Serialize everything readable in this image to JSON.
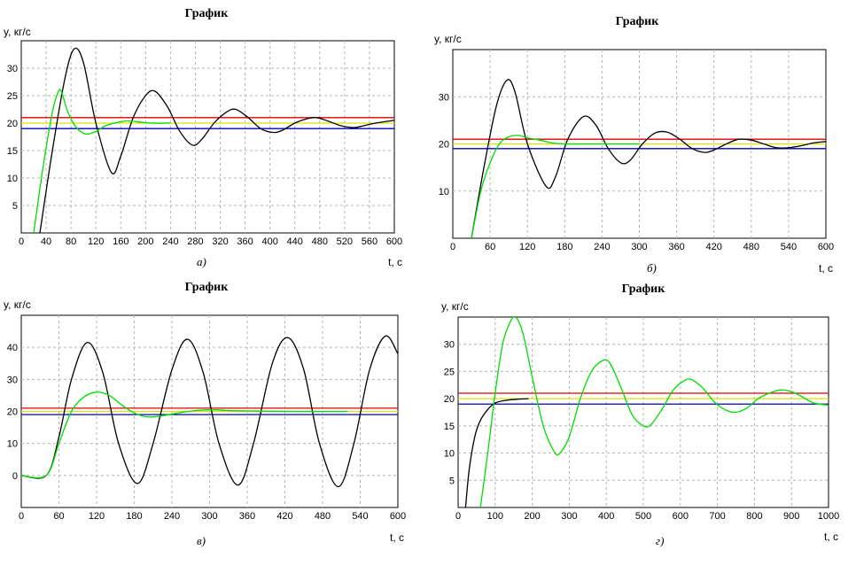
{
  "chart_data": [
    {
      "type": "line",
      "title": "График",
      "ylabel": "y, кг/с",
      "xlabel": "t, c",
      "caption": "а)",
      "xlim": [
        0,
        600
      ],
      "ylim": [
        0,
        35
      ],
      "xticks": [
        0,
        40,
        80,
        120,
        160,
        200,
        240,
        280,
        320,
        360,
        400,
        440,
        480,
        520,
        560,
        600
      ],
      "yticks": [
        5,
        10,
        15,
        20,
        25,
        30
      ],
      "grid": true,
      "hlines": [
        {
          "y": 21,
          "color": "#e00000"
        },
        {
          "y": 20,
          "color": "#e0e000"
        },
        {
          "y": 19,
          "color": "#0000c0"
        }
      ],
      "series": [
        {
          "color": "#000000",
          "x": [
            30,
            50,
            70,
            85,
            100,
            120,
            145,
            160,
            180,
            200,
            215,
            235,
            255,
            275,
            290,
            310,
            330,
            345,
            365,
            385,
            405,
            420,
            440,
            460,
            475,
            495,
            515,
            535,
            550,
            570,
            600
          ],
          "y": [
            0,
            15,
            28,
            33.5,
            31,
            20,
            11,
            14,
            21,
            25,
            25.8,
            23,
            18.5,
            16,
            17,
            20,
            22,
            22.5,
            21,
            19,
            18.3,
            18.7,
            20,
            20.8,
            21,
            20.3,
            19.5,
            19.2,
            19.5,
            20,
            20.5
          ]
        },
        {
          "color": "#00dd00",
          "x": [
            20,
            35,
            50,
            60,
            65,
            75,
            90,
            105,
            120,
            135,
            150,
            170,
            190,
            210,
            240
          ],
          "y": [
            0,
            12,
            22,
            25.8,
            25.6,
            22,
            19,
            18,
            18.5,
            19.5,
            20,
            20.4,
            20.2,
            20,
            20
          ]
        }
      ]
    },
    {
      "type": "line",
      "title": "График",
      "ylabel": "y, кг/с",
      "xlabel": "t, c",
      "caption": "б)",
      "xlim": [
        0,
        600
      ],
      "ylim": [
        0,
        40
      ],
      "xticks": [
        0,
        60,
        120,
        180,
        240,
        300,
        360,
        420,
        480,
        540,
        600
      ],
      "yticks": [
        10,
        20,
        30
      ],
      "grid": true,
      "hlines": [
        {
          "y": 21,
          "color": "#e00000"
        },
        {
          "y": 20,
          "color": "#e0e000"
        },
        {
          "y": 19,
          "color": "#0000c0"
        }
      ],
      "series": [
        {
          "color": "#000000",
          "x": [
            30,
            50,
            70,
            87,
            100,
            120,
            150,
            165,
            185,
            210,
            230,
            250,
            270,
            285,
            305,
            325,
            345,
            365,
            385,
            405,
            420,
            440,
            460,
            480,
            500,
            520,
            540,
            560,
            580,
            600
          ],
          "y": [
            0,
            15,
            28,
            33.5,
            31,
            20,
            11,
            13,
            21,
            25.8,
            24,
            19,
            16,
            16.5,
            20,
            22.3,
            22.5,
            21,
            19,
            18.2,
            18.7,
            20,
            21,
            20.8,
            20,
            19.2,
            19.2,
            19.6,
            20.2,
            20.5
          ]
        },
        {
          "color": "#00dd00",
          "x": [
            30,
            45,
            60,
            75,
            90,
            105,
            120,
            140,
            160,
            180,
            210,
            240,
            270,
            300
          ],
          "y": [
            0,
            10,
            16,
            20,
            21.5,
            21.8,
            21.3,
            20.8,
            20.2,
            20,
            20,
            20,
            20,
            20
          ]
        }
      ]
    },
    {
      "type": "line",
      "title": "График",
      "ylabel": "y, кг/с",
      "xlabel": "t, c",
      "caption": "в)",
      "xlim": [
        0,
        600
      ],
      "ylim": [
        -10,
        50
      ],
      "xticks": [
        0,
        60,
        120,
        180,
        240,
        300,
        360,
        420,
        480,
        540,
        600
      ],
      "yticks": [
        0,
        10,
        20,
        30,
        40
      ],
      "grid": true,
      "hlines": [
        {
          "y": 21,
          "color": "#e00000"
        },
        {
          "y": 20,
          "color": "#e0e000"
        },
        {
          "y": 19,
          "color": "#0000c0"
        }
      ],
      "series": [
        {
          "color": "#000000",
          "x": [
            0,
            40,
            60,
            80,
            105,
            130,
            155,
            185,
            210,
            240,
            265,
            290,
            315,
            345,
            370,
            400,
            425,
            450,
            475,
            505,
            530,
            555,
            580,
            600
          ],
          "y": [
            0,
            0,
            12,
            30,
            41.5,
            32,
            10,
            -2.5,
            10,
            33,
            42.5,
            32,
            10,
            -3,
            10,
            35,
            43,
            33,
            10,
            -3.5,
            10,
            33,
            43.5,
            38
          ]
        },
        {
          "color": "#00dd00",
          "x": [
            0,
            40,
            60,
            80,
            100,
            120,
            140,
            160,
            180,
            200,
            220,
            250,
            280,
            310,
            340,
            440,
            520
          ],
          "y": [
            0,
            0,
            10,
            20,
            24.5,
            26,
            25,
            22,
            19.5,
            18.3,
            18.5,
            19.5,
            20.3,
            20.5,
            20.2,
            20,
            20
          ]
        }
      ]
    },
    {
      "type": "line",
      "title": "График",
      "ylabel": "y, кг/с",
      "xlabel": "t, c",
      "caption": "г)",
      "xlim": [
        0,
        1000
      ],
      "ylim": [
        0,
        35
      ],
      "xticks": [
        0,
        100,
        200,
        300,
        400,
        500,
        600,
        700,
        800,
        900,
        1000
      ],
      "yticks": [
        5,
        10,
        15,
        20,
        25,
        30
      ],
      "grid": true,
      "hlines": [
        {
          "y": 21,
          "color": "#e00000"
        },
        {
          "y": 20,
          "color": "#e0e000"
        },
        {
          "y": 19,
          "color": "#0000c0"
        }
      ],
      "series": [
        {
          "color": "#000000",
          "x": [
            20,
            30,
            45,
            60,
            80,
            100,
            130,
            160,
            190
          ],
          "y": [
            0,
            7,
            13,
            16,
            18,
            19.2,
            19.7,
            19.9,
            20
          ]
        },
        {
          "color": "#00dd00",
          "x": [
            60,
            80,
            100,
            120,
            140,
            155,
            175,
            200,
            230,
            260,
            275,
            300,
            330,
            360,
            390,
            410,
            440,
            470,
            500,
            520,
            550,
            580,
            610,
            630,
            660,
            690,
            720,
            750,
            780,
            810,
            840,
            870,
            900,
            930,
            960,
            1000
          ],
          "y": [
            0,
            10,
            21,
            30,
            34,
            35,
            32,
            24,
            15,
            10.2,
            10,
            13,
            20,
            25,
            27,
            26.5,
            22,
            17,
            15,
            15.2,
            18,
            21.5,
            23.3,
            23.5,
            22,
            19.5,
            18,
            17.5,
            18.3,
            20,
            21,
            21.6,
            21.3,
            20.3,
            19.2,
            18.8
          ]
        }
      ]
    }
  ]
}
